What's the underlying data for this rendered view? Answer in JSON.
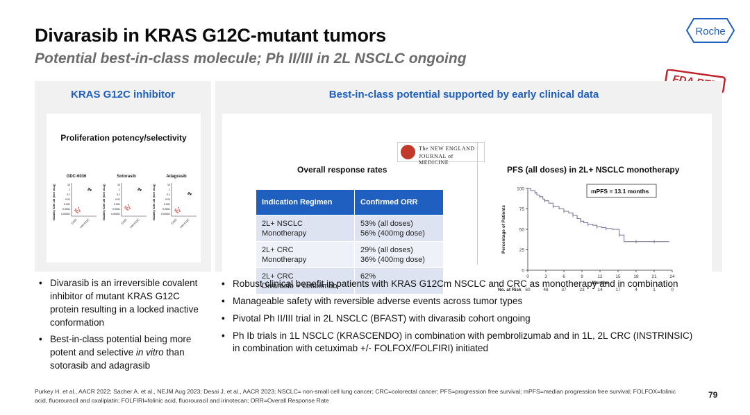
{
  "header": {
    "title": "Divarasib in KRAS G12C-mutant tumors",
    "subtitle": "Potential best-in-class molecule; Ph II/III in 2L NSCLC ongoing",
    "logo_text": "Roche",
    "badge_text": "FDA BTD"
  },
  "left_panel": {
    "heading": "KRAS G12C inhibitor",
    "card_title": "Proliferation potency/selectivity",
    "charts": [
      {
        "title": "GDC-6036"
      },
      {
        "title": "Sotorasib"
      },
      {
        "title": "Adagrasib"
      }
    ],
    "mini_axis": {
      "ylabel": "Viability IC50 uM (free drug)",
      "yticks": [
        "10",
        "1",
        "0.1",
        "0.01",
        "0.001",
        "0.0001",
        "0.00001"
      ],
      "xticks": [
        "G12C",
        "non-G12C"
      ]
    },
    "bullets": [
      {
        "text_before": "Divarasib is an irreversible covalent inhibitor of mutant KRAS G12C protein resulting in a locked inactive conformation",
        "italic": "",
        "text_after": ""
      },
      {
        "text_before": "Best-in-class potential being more potent and selective ",
        "italic": "in vitro",
        "text_after": " than sotorasib and adagrasib"
      }
    ]
  },
  "right_panel": {
    "heading": "Best-in-class potential supported by early clinical data",
    "journal": {
      "line1": "The NEW ENGLAND",
      "line2": "JOURNAL of MEDICINE"
    },
    "orr": {
      "title": "Overall response rates",
      "headers": [
        "Indication Regimen",
        "Confirmed ORR"
      ],
      "rows": [
        {
          "indication": "2L+ NSCLC",
          "regimen": "Monotherapy",
          "orr1": "53% (all doses)",
          "orr2": "56% (400mg dose)"
        },
        {
          "indication": "2L+ CRC",
          "regimen": "Monotherapy",
          "orr1": "29% (all doses)",
          "orr2": "36% (400mg dose)"
        },
        {
          "indication": "2L+ CRC",
          "regimen": "Divarasib + cetuximab",
          "orr1": "62%",
          "orr2": ""
        }
      ]
    },
    "pfs": {
      "title": "PFS (all doses) in 2L+ NSCLC monotherapy",
      "annotation": "mPFS = 13.1 months",
      "ylabel": "Percentage of Patients",
      "xlabel": "Months",
      "at_risk_label": "No. at Risk",
      "at_risk": [
        "60",
        "48",
        "37",
        "23",
        "14",
        "17",
        "4",
        "1",
        "0"
      ]
    },
    "bullets": [
      "Robust clinical benefit in patients with KRAS G12Cm NSCLC and CRC as monotherapy and in combination",
      "Manageable safety with reversible adverse events across tumor types",
      "Pivotal Ph II/III trial in 2L NSCLC (BFAST) with divarasib cohort ongoing",
      "Ph Ib trials in 1L NSCLC (KRASCENDO) in combination with pembrolizumab and in 1L, 2L CRC (INSTRINSIC) in combination with cetuximab +/- FOLFOX/FOLFIRI) initiated"
    ]
  },
  "chart_data": {
    "type": "line",
    "title": "PFS (all doses) in 2L+ NSCLC monotherapy",
    "xlabel": "Months",
    "ylabel": "Percentage of Patients",
    "xlim": [
      0,
      24
    ],
    "ylim": [
      0,
      100
    ],
    "x_ticks": [
      0,
      3,
      6,
      9,
      12,
      15,
      18,
      21,
      24
    ],
    "y_ticks": [
      0,
      25,
      50,
      75,
      100
    ],
    "series": [
      {
        "x": [
          0,
          0.5,
          1.2,
          1.5,
          2.0,
          2.5,
          2.8,
          3.5,
          4.2,
          5.2,
          6.0,
          6.8,
          7.5,
          8.2,
          8.8,
          9.3,
          10.0,
          10.8,
          11.5,
          12.3,
          13.0,
          14.0,
          15.2,
          16.0,
          18.0,
          19.5,
          21.0,
          23.5
        ],
        "y": [
          100,
          97,
          95,
          92,
          90,
          87,
          85,
          82,
          78,
          75,
          72,
          70,
          67,
          63,
          60,
          58,
          56,
          55,
          53,
          52,
          51,
          50,
          43,
          35,
          35,
          35,
          35,
          35
        ]
      }
    ],
    "at_risk": [
      60,
      48,
      37,
      23,
      14,
      17,
      4,
      1,
      0
    ],
    "annotation": "mPFS = 13.1 months",
    "grid": false
  },
  "footnote": "Purkey H. et al., AACR 2022; Sacher A. et al., NEJM Aug 2023; Desai J, et al., AACR 2023; NSCLC= non-small cell lung cancer; CRC=colorectal cancer; PFS=progression free survival; mPFS=median progression free survival; FOLFOX=folinic acid, fluorouracil and oxaliplatin; FOLFIRI=folinic acid, fluorouracil and irinotecan; ORR=Overall Response Rate",
  "page_number": "79",
  "colors": {
    "accent": "#1f5fbf",
    "panel_bg": "#f1f1f1",
    "row_a": "#dde3f1",
    "row_b": "#eef1f8",
    "fda_red": "#c0232a"
  }
}
